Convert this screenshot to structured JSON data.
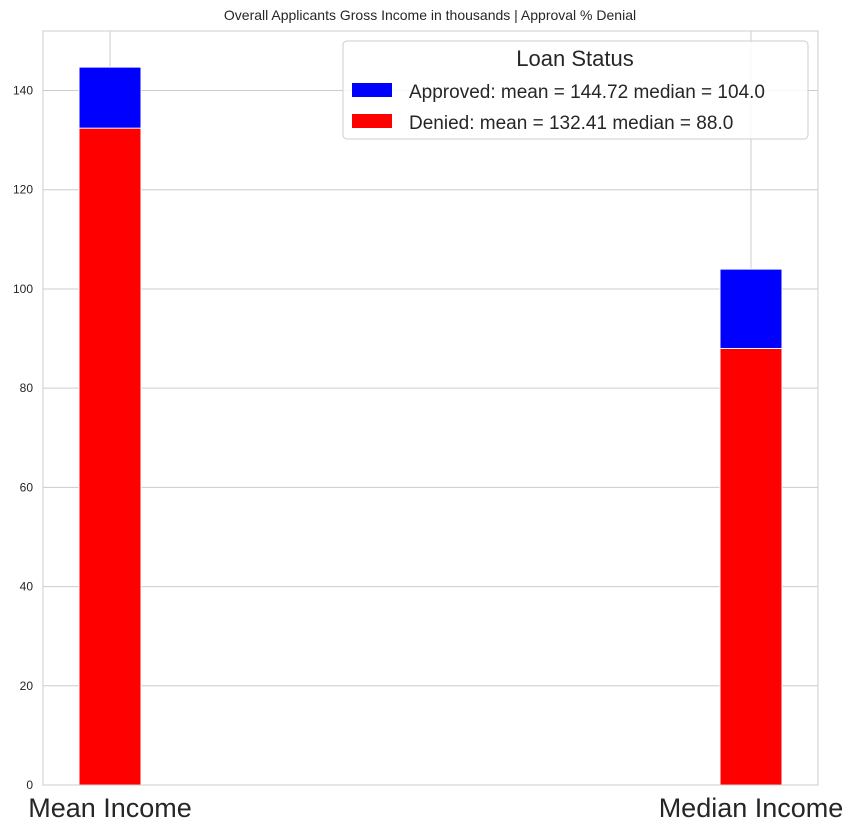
{
  "chart_data": {
    "type": "bar",
    "title": "Overall Applicants Gross Income in thousands | Approval % Denial",
    "categories": [
      "Mean Income",
      "Median Income"
    ],
    "series": [
      {
        "name": "Approved: mean = 144.72 median = 104.0",
        "values": [
          144.72,
          104.0
        ],
        "color": "#0000ff"
      },
      {
        "name": "Denied: mean = 132.41 median = 88.0",
        "values": [
          132.41,
          88.0
        ],
        "color": "#ff0000"
      }
    ],
    "overlay": true,
    "xlabel": "",
    "ylabel": "",
    "ylim": [
      0,
      152
    ],
    "yticks": [
      0,
      20,
      40,
      60,
      80,
      100,
      120,
      140
    ],
    "grid": true,
    "legend": {
      "title": "Loan Status",
      "placement": "top-right"
    }
  }
}
